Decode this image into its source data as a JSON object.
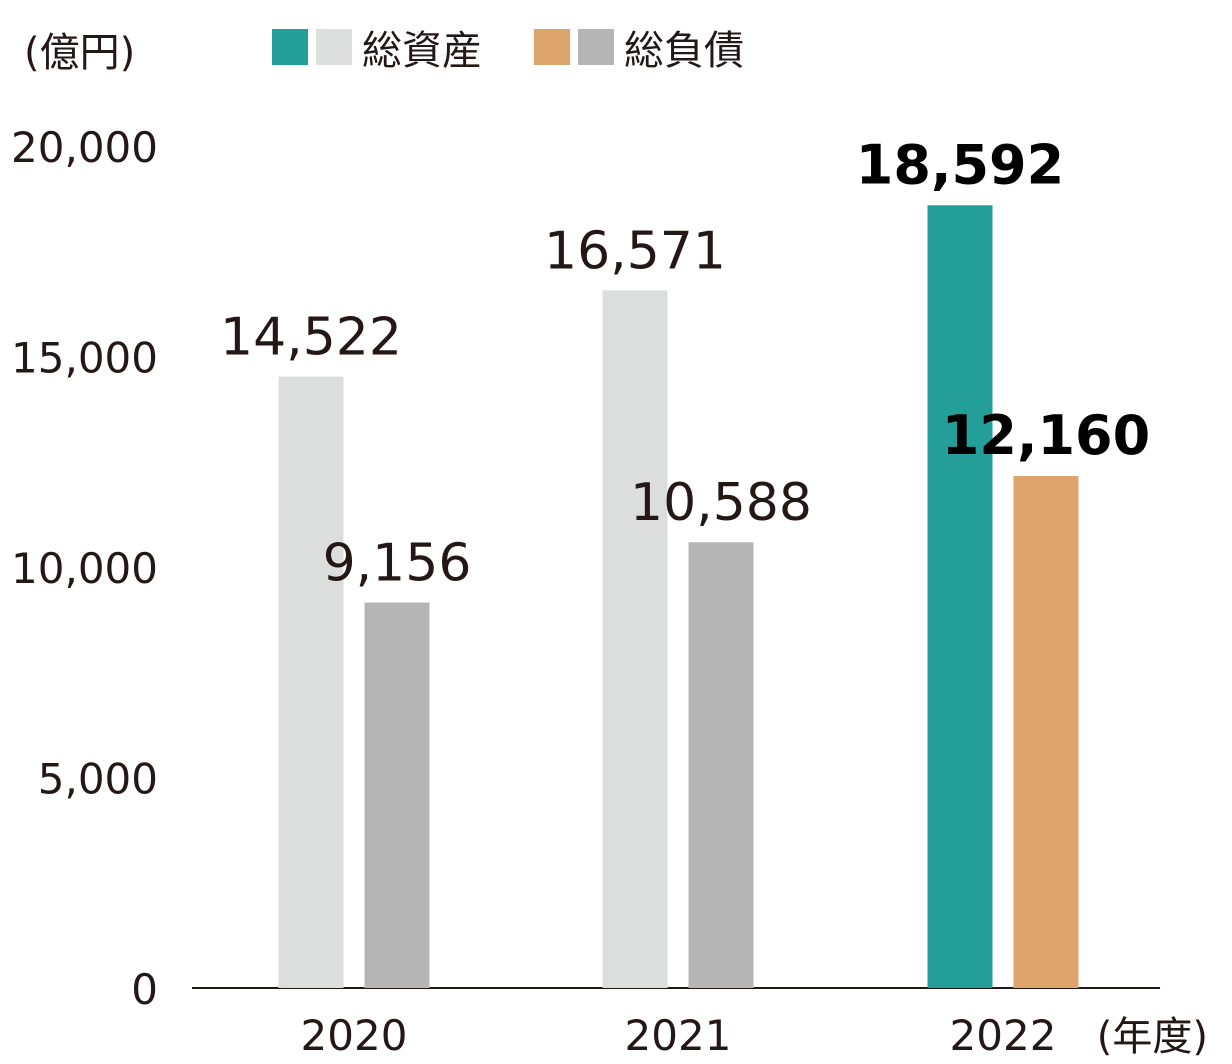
{
  "unit_label": "(億円)",
  "x_unit_label": "(年度)",
  "legend": [
    {
      "label": "総資産",
      "swatches": [
        "#239e99",
        "#dcdedd"
      ]
    },
    {
      "label": "総負債",
      "swatches": [
        "#dda46c",
        "#b4b5b4"
      ]
    }
  ],
  "colors": {
    "assets_highlight": "#239e99",
    "assets_past": "#dcdedd",
    "liabilities_highlight": "#dda46c",
    "liabilities_past": "#b4b5b4",
    "axis": "#231815",
    "text": "#231815"
  },
  "chart_data": {
    "type": "bar",
    "categories": [
      "2020",
      "2021",
      "2022"
    ],
    "series": [
      {
        "name": "総資産",
        "values": [
          14522,
          16571,
          18592
        ],
        "labels": [
          "14,522",
          "16,571",
          "18,592"
        ]
      },
      {
        "name": "総負債",
        "values": [
          9156,
          10588,
          12160
        ],
        "labels": [
          "9,156",
          "10,588",
          "12,160"
        ]
      }
    ],
    "highlight_category": "2022",
    "ylim": [
      0,
      20000
    ],
    "yticks": [
      0,
      5000,
      10000,
      15000,
      20000
    ],
    "ytick_labels": [
      "0",
      "5,000",
      "10,000",
      "15,000",
      "20,000"
    ],
    "grid": false,
    "legend_position": "top"
  }
}
